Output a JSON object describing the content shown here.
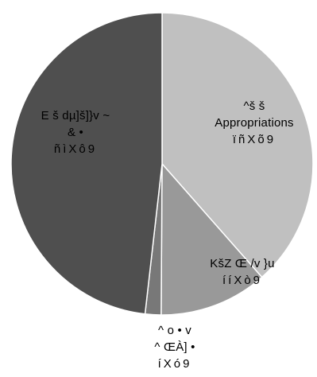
{
  "chart_data": {
    "type": "pie",
    "title": "",
    "start_angle_deg": 0,
    "direction": "clockwise",
    "legend": "none",
    "slices": [
      {
        "label_lines": [
          "^š š",
          "Appropriations"
        ],
        "value": 38.5,
        "pct_text": "ïñXõ9",
        "color": "#c0c0c0"
      },
      {
        "label_lines": [
          "KšZ Œ /v }u"
        ],
        "value": 11.6,
        "pct_text": "ííXò9",
        "color": "#999999"
      },
      {
        "label_lines": [
          "^ o • v",
          "^ ŒÀ] •"
        ],
        "value": 1.7,
        "pct_text": "íXó9",
        "color": "#787878"
      },
      {
        "label_lines": [
          "E š dµ]š]}v ~",
          "& •"
        ],
        "value": 48.2,
        "pct_text": "ñìXô9",
        "color": "#4f4f4f"
      }
    ]
  }
}
